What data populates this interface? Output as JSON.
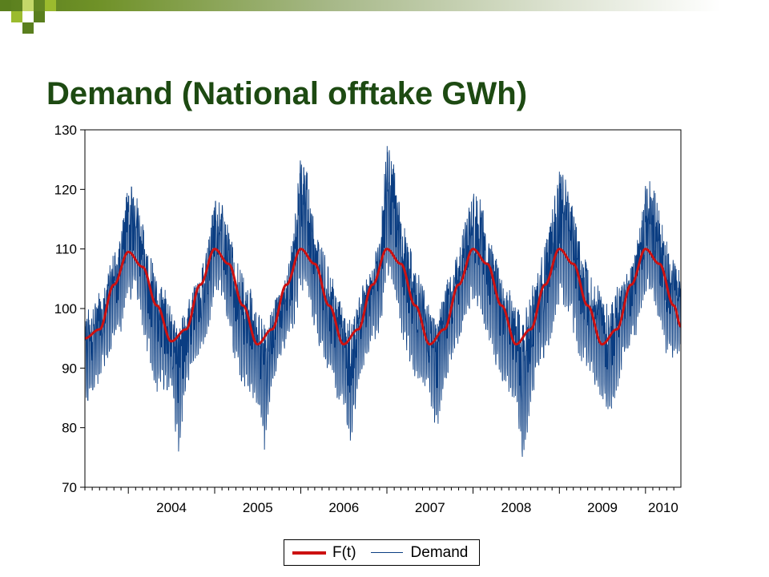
{
  "slide": {
    "title": "Demand (National offtake GWh)"
  },
  "colors": {
    "title": "#1d4a12",
    "demand": "#0a3d82",
    "ft": "#cc1111",
    "header_dark": "#5a7f1e",
    "header_light": "#9bbb2e"
  },
  "chart_data": {
    "type": "line",
    "title": "",
    "xlabel": "",
    "ylabel": "",
    "ylim": [
      70,
      130
    ],
    "yticks": [
      70,
      80,
      90,
      100,
      110,
      120,
      130
    ],
    "x_range": [
      "2003-07-01",
      "2010-05-31"
    ],
    "x_tick_labels": [
      "2004",
      "2005",
      "2006",
      "2007",
      "2008",
      "2009",
      "2010"
    ],
    "grid": false,
    "legend_position": "bottom",
    "series": [
      {
        "name": "F(t)",
        "kind": "seasonal-fit",
        "color": "#cc1111",
        "date": [
          "2003-07-01",
          "2003-09-01",
          "2003-11-01",
          "2004-01-01",
          "2004-03-01",
          "2004-05-01",
          "2004-07-01",
          "2004-09-01",
          "2004-11-01",
          "2005-01-01",
          "2005-03-01",
          "2005-05-01",
          "2005-07-01",
          "2005-09-01",
          "2005-11-01",
          "2006-01-01",
          "2006-03-01",
          "2006-05-01",
          "2006-07-01",
          "2006-09-01",
          "2006-11-01",
          "2007-01-01",
          "2007-03-01",
          "2007-05-01",
          "2007-07-01",
          "2007-09-01",
          "2007-11-01",
          "2008-01-01",
          "2008-03-01",
          "2008-05-01",
          "2008-07-01",
          "2008-09-01",
          "2008-11-01",
          "2009-01-01",
          "2009-03-01",
          "2009-05-01",
          "2009-07-01",
          "2009-09-01",
          "2009-11-01",
          "2010-01-01",
          "2010-03-01",
          "2010-05-01",
          "2010-05-31"
        ],
        "values": [
          95,
          96.5,
          104,
          109.5,
          107,
          100.5,
          94.5,
          96.5,
          104,
          110,
          107.5,
          100.5,
          94,
          96.5,
          104,
          110,
          107.5,
          100.5,
          94,
          96.5,
          104,
          110,
          107.5,
          100.5,
          94,
          96.5,
          104,
          110,
          107.5,
          100.5,
          94,
          96.5,
          104,
          110,
          107.5,
          100.5,
          94,
          96.5,
          104,
          110,
          107.5,
          100.5,
          97
        ]
      },
      {
        "name": "Demand",
        "kind": "daily",
        "color": "#0a3d82",
        "date": [
          "2003-07-01",
          "2003-08-01",
          "2003-09-01",
          "2003-10-01",
          "2003-11-01",
          "2003-12-01",
          "2004-01-01",
          "2004-02-01",
          "2004-03-01",
          "2004-04-01",
          "2004-05-01",
          "2004-06-01",
          "2004-07-01",
          "2004-08-01",
          "2004-09-01",
          "2004-10-01",
          "2004-11-01",
          "2004-12-01",
          "2005-01-01",
          "2005-02-01",
          "2005-03-01",
          "2005-04-01",
          "2005-05-01",
          "2005-06-01",
          "2005-07-01",
          "2005-08-01",
          "2005-09-01",
          "2005-10-01",
          "2005-11-01",
          "2005-12-01",
          "2006-01-01",
          "2006-02-01",
          "2006-03-01",
          "2006-04-01",
          "2006-05-01",
          "2006-06-01",
          "2006-07-01",
          "2006-08-01",
          "2006-09-01",
          "2006-10-01",
          "2006-11-01",
          "2006-12-01",
          "2007-01-01",
          "2007-02-01",
          "2007-03-01",
          "2007-04-01",
          "2007-05-01",
          "2007-06-01",
          "2007-07-01",
          "2007-08-01",
          "2007-09-01",
          "2007-10-01",
          "2007-11-01",
          "2007-12-01",
          "2008-01-01",
          "2008-02-01",
          "2008-03-01",
          "2008-04-01",
          "2008-05-01",
          "2008-06-01",
          "2008-07-01",
          "2008-08-01",
          "2008-09-01",
          "2008-10-01",
          "2008-11-01",
          "2008-12-01",
          "2009-01-01",
          "2009-02-01",
          "2009-03-01",
          "2009-04-01",
          "2009-05-01",
          "2009-06-01",
          "2009-07-01",
          "2009-08-01",
          "2009-09-01",
          "2009-10-01",
          "2009-11-01",
          "2009-12-01",
          "2010-01-01",
          "2010-02-01",
          "2010-03-01",
          "2010-04-01",
          "2010-05-01",
          "2010-05-31"
        ],
        "high": [
          101,
          100,
          104,
          106,
          110,
          113,
          123,
          121,
          115,
          110,
          106,
          104,
          102,
          97,
          101,
          104,
          106,
          111,
          119,
          118,
          114,
          109,
          106,
          104,
          100,
          98,
          101,
          103,
          106,
          113,
          128,
          123,
          115,
          111,
          107,
          104,
          100,
          99,
          103,
          105,
          108,
          113,
          128.5,
          125,
          117,
          112,
          108,
          105,
          101,
          99,
          104,
          107,
          110,
          116,
          120,
          119,
          114,
          110,
          107,
          104,
          101,
          99,
          104,
          107,
          111,
          117,
          124,
          122,
          117,
          113,
          108,
          106,
          103,
          101,
          104,
          106,
          108,
          113,
          122,
          122.5,
          117,
          112,
          109,
          106
        ],
        "low": [
          84,
          85,
          88,
          91,
          94,
          96,
          101,
          102,
          96,
          90,
          86,
          86,
          85,
          75,
          86,
          90,
          93,
          95,
          103,
          102,
          97,
          90,
          87,
          85,
          84,
          76,
          86,
          91,
          94,
          96,
          103,
          101,
          96,
          91,
          88,
          85,
          84,
          77,
          87,
          91,
          94,
          96,
          104,
          102,
          96,
          91,
          88,
          86,
          85,
          78,
          87,
          91,
          94,
          97,
          101,
          100,
          95,
          91,
          88,
          86,
          84,
          72.5,
          84,
          88,
          92,
          95,
          101,
          100,
          96,
          91,
          89,
          87,
          84,
          82,
          86,
          91,
          94,
          96,
          103,
          101,
          97,
          92,
          91,
          93
        ]
      }
    ]
  }
}
